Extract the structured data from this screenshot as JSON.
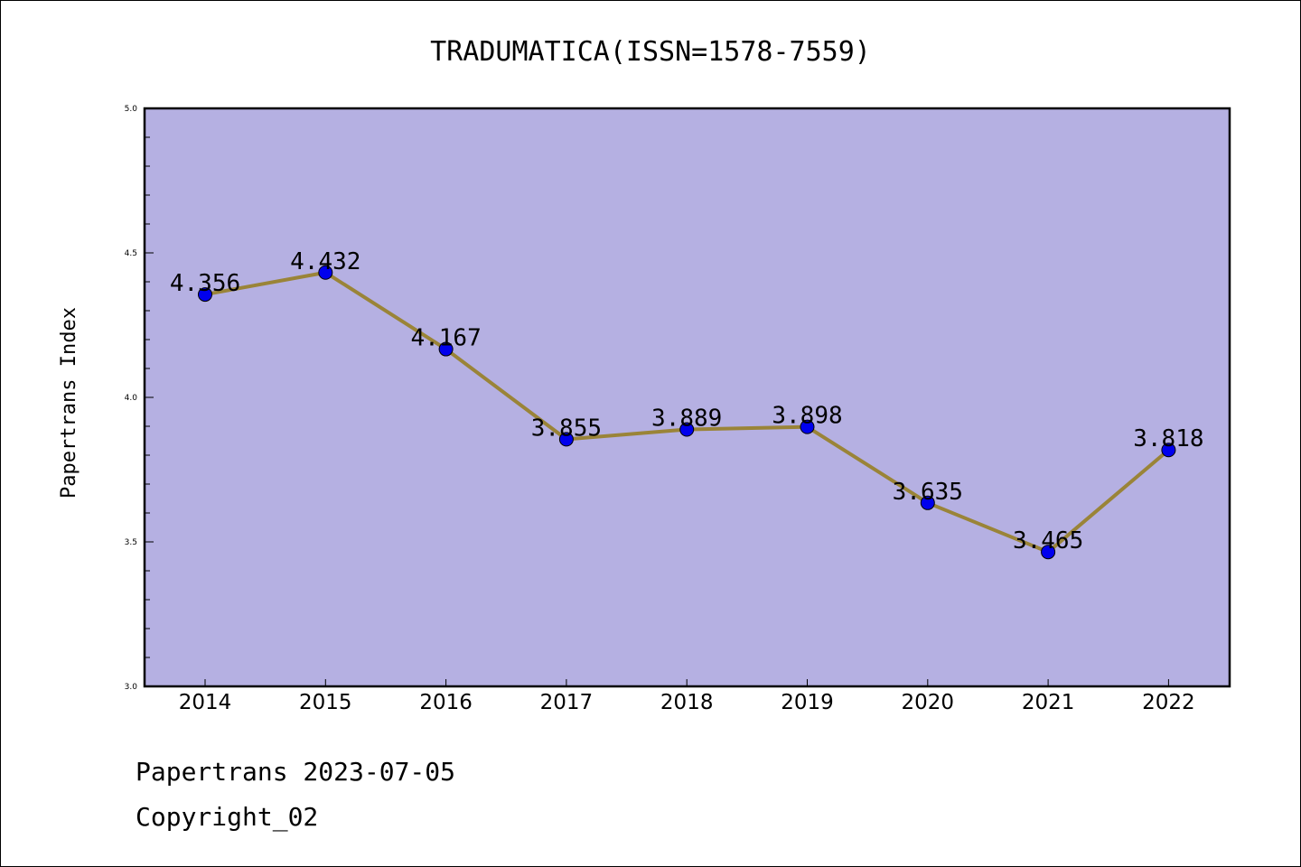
{
  "chart_data": {
    "type": "line",
    "title": "TRADUMATICA(ISSN=1578-7559)",
    "ylabel": "Papertrans Index",
    "xlabel": "",
    "categories": [
      "2014",
      "2015",
      "2016",
      "2017",
      "2018",
      "2019",
      "2020",
      "2021",
      "2022"
    ],
    "series": [
      {
        "values": [
          4.356,
          4.432,
          4.167,
          3.855,
          3.889,
          3.898,
          3.635,
          3.465,
          3.818
        ]
      }
    ],
    "data_labels": [
      "4.356",
      "4.432",
      "4.167",
      "3.855",
      "3.889",
      "3.898",
      "3.635",
      "3.465",
      "3.818"
    ],
    "ylim": [
      3.0,
      5.0
    ],
    "yticks": [
      "3.0",
      "3.5",
      "4.0",
      "4.5",
      "5.0"
    ],
    "legend": "none",
    "grid": false,
    "colors": {
      "plot_background": "#b5b0e2",
      "line": "#9a8438",
      "marker": "#0000ee"
    }
  },
  "footer": {
    "line1": "Papertrans 2023-07-05",
    "line2": "Copyright_02"
  }
}
